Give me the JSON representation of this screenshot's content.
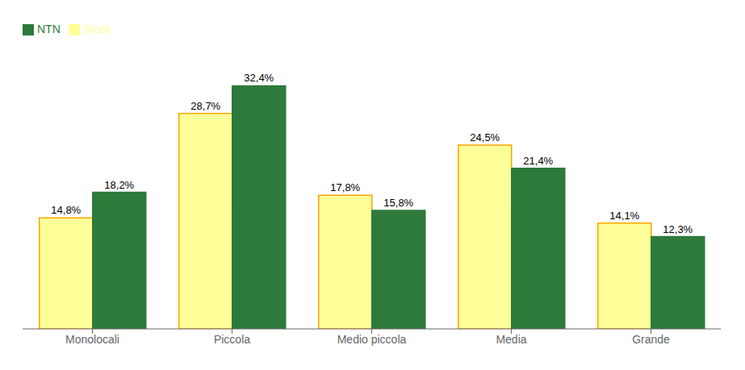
{
  "chart_data": {
    "type": "bar",
    "categories": [
      "Monolocali",
      "Piccola",
      "Medio piccola",
      "Media",
      "Grande"
    ],
    "series": [
      {
        "name": "Stock",
        "color": "#FFFF99",
        "values": [
          14.8,
          28.7,
          17.8,
          24.5,
          14.1
        ],
        "value_labels": [
          "14,8%",
          "28,7%",
          "17,8%",
          "24,5%",
          "14,1%"
        ]
      },
      {
        "name": "NTN",
        "color": "#2D7A3A",
        "values": [
          18.2,
          32.4,
          15.8,
          21.4,
          12.3
        ],
        "value_labels": [
          "18,2%",
          "32,4%",
          "15,8%",
          "21,4%",
          "12,3%"
        ]
      }
    ],
    "ylim": [
      0,
      38
    ],
    "data_labels": true,
    "tick_labels": "x",
    "legend": "upper left",
    "grid": false
  }
}
